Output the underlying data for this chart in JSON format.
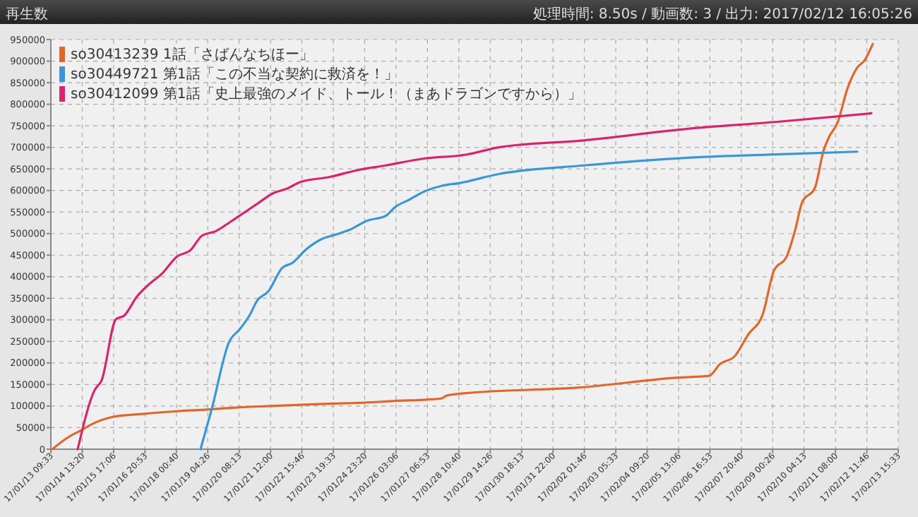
{
  "chart_data": {
    "type": "line",
    "title": "再生数",
    "annotations": [
      "処理時間: 8.50s / 動画数: 3 / 出力: 2017/02/12 16:05:26"
    ],
    "xlim": [
      "2017-01-13T09:33",
      "2017-02-13T15:33"
    ],
    "ylim": [
      0,
      950000
    ],
    "xticks": [
      {
        "value": "2017-01-13T09:33",
        "label": "17/01/13 09:33"
      },
      {
        "value": "2017-01-14T13:20",
        "label": "17/01/14 13:20"
      },
      {
        "value": "2017-01-15T17:06",
        "label": "17/01/15 17:06"
      },
      {
        "value": "2017-01-16T20:53",
        "label": "17/01/16 20:53"
      },
      {
        "value": "2017-01-18T00:40",
        "label": "17/01/18 00:40"
      },
      {
        "value": "2017-01-19T04:26",
        "label": "17/01/19 04:26"
      },
      {
        "value": "2017-01-20T08:13",
        "label": "17/01/20 08:13"
      },
      {
        "value": "2017-01-21T12:00",
        "label": "17/01/21 12:00"
      },
      {
        "value": "2017-01-22T15:46",
        "label": "17/01/22 15:46"
      },
      {
        "value": "2017-01-23T19:33",
        "label": "17/01/23 19:33"
      },
      {
        "value": "2017-01-24T23:20",
        "label": "17/01/24 23:20"
      },
      {
        "value": "2017-01-26T03:06",
        "label": "17/01/26 03:06"
      },
      {
        "value": "2017-01-27T06:53",
        "label": "17/01/27 06:53"
      },
      {
        "value": "2017-01-28T10:40",
        "label": "17/01/28 10:40"
      },
      {
        "value": "2017-01-29T14:26",
        "label": "17/01/29 14:26"
      },
      {
        "value": "2017-01-30T18:13",
        "label": "17/01/30 18:13"
      },
      {
        "value": "2017-01-31T22:00",
        "label": "17/01/31 22:00"
      },
      {
        "value": "2017-02-02T01:46",
        "label": "17/02/02 01:46"
      },
      {
        "value": "2017-02-03T05:33",
        "label": "17/02/03 05:33"
      },
      {
        "value": "2017-02-04T09:20",
        "label": "17/02/04 09:20"
      },
      {
        "value": "2017-02-05T13:06",
        "label": "17/02/05 13:06"
      },
      {
        "value": "2017-02-06T16:53",
        "label": "17/02/06 16:53"
      },
      {
        "value": "2017-02-07T20:40",
        "label": "17/02/07 20:40"
      },
      {
        "value": "2017-02-09T00:26",
        "label": "17/02/09 00:26"
      },
      {
        "value": "2017-02-10T04:13",
        "label": "17/02/10 04:13"
      },
      {
        "value": "2017-02-11T08:00",
        "label": "17/02/11 08:00"
      },
      {
        "value": "2017-02-12T11:46",
        "label": "17/02/12 11:46"
      },
      {
        "value": "2017-02-13T15:33",
        "label": "17/02/13 15:33"
      }
    ],
    "yticks": [
      0,
      50000,
      100000,
      150000,
      200000,
      250000,
      300000,
      350000,
      400000,
      450000,
      500000,
      550000,
      600000,
      650000,
      700000,
      750000,
      800000,
      850000,
      900000,
      950000
    ],
    "grid": true,
    "legend": "top left",
    "marker": "none",
    "line_style": "solid",
    "series": [
      {
        "name": "so30413239 1話「さばんなちほー」",
        "color": "#e0672a",
        "x": [
          "2017-01-13T10:48",
          "2017-01-13T23:18",
          "2017-01-14T13:03",
          "2017-01-14T21:48",
          "2017-01-15T16:33",
          "2017-01-16T20:03",
          "2017-01-18T00:48",
          "2017-01-19T04:18",
          "2017-01-20T07:48",
          "2017-01-21T11:18",
          "2017-01-22T14:48",
          "2017-01-23T19:33",
          "2017-01-24T23:03",
          "2017-01-26T02:33",
          "2017-01-27T06:03",
          "2017-01-27T19:48",
          "2017-01-27T23:33",
          "2017-01-28T17:03",
          "2017-02-01T21:03",
          "2017-02-05T12:33",
          "2017-02-06T16:03",
          "2017-02-07T02:03",
          "2017-02-07T14:33",
          "2017-02-08T03:03",
          "2017-02-08T15:33",
          "2017-02-09T01:33",
          "2017-02-09T12:48",
          "2017-02-09T20:18",
          "2017-02-10T02:33",
          "2017-02-10T13:48",
          "2017-02-10T21:18",
          "2017-02-11T02:18",
          "2017-02-11T09:48",
          "2017-02-11T18:33",
          "2017-02-12T03:18",
          "2017-02-12T09:33",
          "2017-02-12T17:03"
        ],
        "values": [
          0,
          25000,
          45000,
          58000,
          75000,
          82000,
          88000,
          92000,
          97000,
          100000,
          103000,
          106000,
          108000,
          112000,
          115000,
          118000,
          124000,
          130000,
          143000,
          166000,
          170000,
          198000,
          215000,
          267000,
          312000,
          414000,
          447000,
          508000,
          573000,
          606000,
          691000,
          724000,
          757000,
          836000,
          885000,
          901000,
          940000
        ]
      },
      {
        "name": "so30449721 第1話「この不当な契約に救済を！」",
        "color": "#3a96d8",
        "x": [
          "2017-01-18T22:03",
          "2017-01-19T08:03",
          "2017-01-19T23:03",
          "2017-01-20T09:03",
          "2017-01-20T17:48",
          "2017-01-21T00:03",
          "2017-01-21T10:03",
          "2017-01-21T22:33",
          "2017-01-22T07:18",
          "2017-01-22T19:48",
          "2017-01-23T08:18",
          "2017-01-23T20:48",
          "2017-01-24T09:18",
          "2017-01-25T01:33",
          "2017-01-25T17:48",
          "2017-01-26T02:33",
          "2017-01-26T15:03",
          "2017-01-27T03:33",
          "2017-01-27T19:48",
          "2017-01-28T10:48",
          "2017-01-29T21:48",
          "2017-02-02T00:48",
          "2017-02-05T21:18",
          "2017-02-09T07:48",
          "2017-02-12T03:18"
        ],
        "values": [
          0,
          94000,
          247000,
          279000,
          312000,
          344000,
          366000,
          421000,
          432000,
          464000,
          486000,
          497000,
          508000,
          530000,
          541000,
          562000,
          579000,
          597000,
          611000,
          617000,
          638000,
          658000,
          676000,
          684000,
          690000
        ]
      },
      {
        "name": "so30412099 第1話「史上最強のメイド、トール！（まあドラゴンですから）」",
        "color": "#d8246e",
        "x": [
          "2017-01-14T09:18",
          "2017-01-15T00:18",
          "2017-01-15T06:33",
          "2017-01-15T19:03",
          "2017-01-16T02:33",
          "2017-01-16T13:48",
          "2017-01-16T23:48",
          "2017-01-17T12:18",
          "2017-01-18T00:48",
          "2017-01-18T13:18",
          "2017-01-18T23:18",
          "2017-01-19T11:48",
          "2017-01-20T00:18",
          "2017-01-20T12:48",
          "2017-01-21T01:18",
          "2017-01-21T13:48",
          "2017-01-22T02:18",
          "2017-01-22T14:48",
          "2017-01-23T15:48",
          "2017-01-24T16:48",
          "2017-01-25T17:48",
          "2017-01-27T03:33",
          "2017-01-28T17:03",
          "2017-01-29T21:48",
          "2017-02-02T00:48",
          "2017-02-05T21:18",
          "2017-02-09T07:48",
          "2017-02-12T15:48"
        ],
        "values": [
          0,
          137000,
          160000,
          301000,
          310000,
          354000,
          381000,
          408000,
          446000,
          462000,
          495000,
          506000,
          527000,
          549000,
          571000,
          593000,
          604000,
          620000,
          631000,
          647000,
          658000,
          674000,
          683000,
          700000,
          716000,
          743000,
          760000,
          779000
        ]
      }
    ]
  }
}
